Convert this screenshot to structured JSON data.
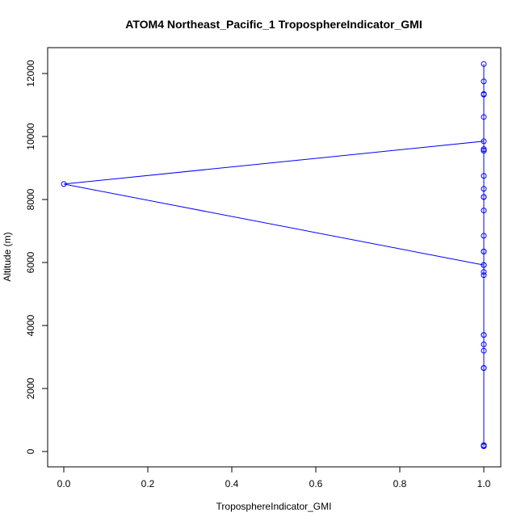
{
  "chart_data": {
    "type": "scatter",
    "title": "ATOM4 Northeast_Pacific_1 TroposphereIndicator_GMI",
    "xlabel": "TroposphereIndicator_GMI",
    "ylabel": "Altitude (m)",
    "xlim": [
      0.0,
      1.0
    ],
    "ylim": [
      0,
      12300
    ],
    "x_ticks": [
      "0.0",
      "0.2",
      "0.4",
      "0.6",
      "0.8",
      "1.0"
    ],
    "y_ticks": [
      "0",
      "2000",
      "4000",
      "6000",
      "8000",
      "10000",
      "12000"
    ],
    "series": [
      {
        "color": "#0000ff",
        "marker": "open-circle",
        "line": true,
        "x": [
          1.0,
          1.0,
          1.0,
          1.0,
          1.0,
          1.0,
          1.0,
          1.0,
          1.0,
          1.0,
          1.0,
          1.0,
          1.0,
          1.0,
          1.0,
          1.0,
          1.0,
          1.0,
          0.0,
          1.0,
          1.0,
          1.0,
          1.0,
          1.0,
          1.0,
          1.0,
          1.0,
          1.0,
          1.0,
          1.0,
          1.0,
          1.0
        ],
        "y": [
          170,
          200,
          2650,
          3200,
          3400,
          3700,
          5600,
          5700,
          5920,
          6350,
          6850,
          7650,
          8080,
          8340,
          8750,
          9550,
          9600,
          9850,
          8490,
          5920,
          10620,
          11330,
          11350,
          11750,
          12300,
          9550,
          8080,
          6350,
          3700,
          2650,
          200,
          170
        ]
      }
    ]
  }
}
